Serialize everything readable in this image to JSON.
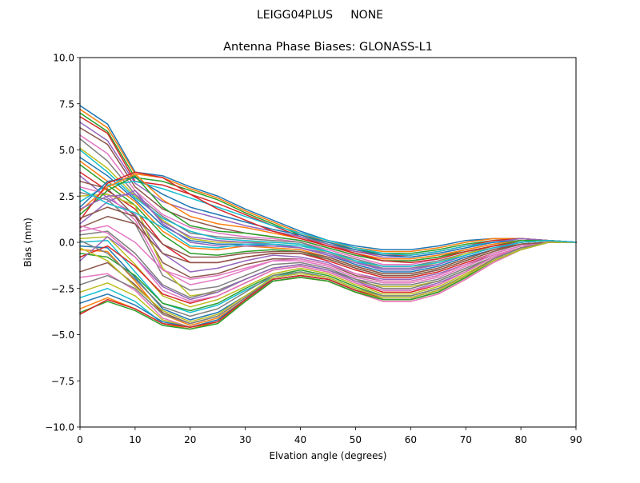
{
  "figure": {
    "suptitle": "LEIGG04PLUS     NONE"
  },
  "chart_data": {
    "type": "line",
    "title": "Antenna Phase Biases: GLONASS-L1",
    "xlabel": "Elvation angle (degrees)",
    "ylabel": "Bias (mm)",
    "xlim": [
      0,
      90
    ],
    "ylim": [
      -10,
      10
    ],
    "xticks": [
      0,
      10,
      20,
      30,
      40,
      50,
      60,
      70,
      80,
      90
    ],
    "yticks": [
      -10.0,
      -7.5,
      -5.0,
      -2.5,
      0.0,
      2.5,
      5.0,
      7.5,
      10.0
    ],
    "ytick_labels": [
      "−10.0",
      "−7.5",
      "−5.0",
      "−2.5",
      "0.0",
      "2.5",
      "5.0",
      "7.5",
      "10.0"
    ],
    "grid": false,
    "x": [
      0,
      5,
      10,
      15,
      20,
      25,
      30,
      35,
      40,
      45,
      50,
      55,
      60,
      65,
      70,
      75,
      80,
      85,
      90
    ],
    "colors": [
      "#1f77b4",
      "#ff7f0e",
      "#2ca02c",
      "#d62728",
      "#9467bd",
      "#8c564b",
      "#e377c2",
      "#7f7f7f",
      "#bcbd22",
      "#17becf"
    ],
    "series": [
      {
        "values": [
          7.4,
          6.4,
          3.8,
          3.6,
          3.0,
          2.5,
          1.8,
          1.2,
          0.6,
          0.1,
          -0.2,
          -0.4,
          -0.4,
          -0.2,
          0.1,
          0.2,
          0.2,
          0.1,
          0.0
        ]
      },
      {
        "values": [
          7.2,
          6.2,
          3.7,
          3.5,
          2.9,
          2.4,
          1.7,
          1.1,
          0.5,
          0.0,
          -0.3,
          -0.5,
          -0.5,
          -0.3,
          0.0,
          0.2,
          0.2,
          0.1,
          0.0
        ]
      },
      {
        "values": [
          7.0,
          6.0,
          3.5,
          3.3,
          2.8,
          2.3,
          1.6,
          1.0,
          0.4,
          -0.1,
          -0.4,
          -0.6,
          -0.6,
          -0.4,
          -0.1,
          0.1,
          0.2,
          0.1,
          0.0
        ]
      },
      {
        "values": [
          6.8,
          5.9,
          3.3,
          3.1,
          2.6,
          2.1,
          1.5,
          0.9,
          0.3,
          -0.2,
          -0.5,
          -0.7,
          -0.7,
          -0.5,
          -0.2,
          0.1,
          0.2,
          0.1,
          0.0
        ]
      },
      {
        "values": [
          6.5,
          5.5,
          3.2,
          2.2,
          1.7,
          1.3,
          0.9,
          0.6,
          0.3,
          -0.1,
          -0.5,
          -0.8,
          -0.8,
          -0.6,
          -0.3,
          0.0,
          0.2,
          0.1,
          0.0
        ]
      },
      {
        "values": [
          6.2,
          5.3,
          3.0,
          1.8,
          1.2,
          0.8,
          0.5,
          0.3,
          0.1,
          -0.3,
          -0.7,
          -1.0,
          -1.0,
          -0.8,
          -0.4,
          -0.1,
          0.1,
          0.1,
          0.0
        ]
      },
      {
        "values": [
          5.8,
          4.8,
          2.8,
          1.5,
          0.8,
          0.5,
          0.3,
          0.2,
          0.0,
          -0.4,
          -0.8,
          -1.2,
          -1.2,
          -0.9,
          -0.5,
          -0.2,
          0.1,
          0.1,
          0.0
        ]
      },
      {
        "values": [
          5.6,
          4.4,
          2.6,
          1.4,
          0.5,
          0.3,
          0.2,
          0.1,
          0.0,
          -0.5,
          -0.9,
          -1.3,
          -1.3,
          -1.0,
          -0.6,
          -0.2,
          0.1,
          0.1,
          0.0
        ]
      },
      {
        "values": [
          5.1,
          4.0,
          2.5,
          1.2,
          0.2,
          0.0,
          0.0,
          0.0,
          -0.1,
          -0.6,
          -1.0,
          -1.4,
          -1.4,
          -1.1,
          -0.6,
          -0.3,
          0.0,
          0.1,
          0.0
        ]
      },
      {
        "values": [
          5.0,
          3.8,
          2.4,
          1.3,
          0.6,
          0.2,
          0.1,
          0.0,
          -0.1,
          -0.5,
          -1.0,
          -1.5,
          -1.5,
          -1.2,
          -0.7,
          -0.3,
          0.0,
          0.1,
          0.0
        ]
      },
      {
        "values": [
          4.6,
          3.6,
          2.3,
          0.9,
          0.1,
          -0.1,
          -0.1,
          -0.2,
          -0.3,
          -0.7,
          -1.2,
          -1.6,
          -1.6,
          -1.3,
          -0.8,
          -0.4,
          0.0,
          0.1,
          0.0
        ]
      },
      {
        "values": [
          4.4,
          3.3,
          2.2,
          0.6,
          -0.3,
          -0.4,
          -0.2,
          -0.3,
          -0.4,
          -0.8,
          -1.3,
          -1.7,
          -1.7,
          -1.4,
          -0.9,
          -0.4,
          -0.1,
          0.0,
          0.0
        ]
      },
      {
        "values": [
          4.2,
          3.1,
          2.0,
          0.4,
          -0.6,
          -0.7,
          -0.5,
          -0.4,
          -0.5,
          -0.9,
          -1.4,
          -1.8,
          -1.8,
          -1.5,
          -1.0,
          -0.5,
          -0.1,
          0.0,
          0.0
        ]
      },
      {
        "values": [
          3.8,
          2.8,
          1.8,
          -0.1,
          -1.1,
          -1.1,
          -0.8,
          -0.6,
          -0.6,
          -1.0,
          -1.5,
          -1.9,
          -1.9,
          -1.6,
          -1.1,
          -0.6,
          -0.2,
          0.0,
          0.0
        ]
      },
      {
        "values": [
          3.6,
          2.4,
          1.5,
          -0.6,
          -1.6,
          -1.4,
          -1.0,
          -0.7,
          -0.8,
          -1.1,
          -1.7,
          -2.0,
          -2.0,
          -1.7,
          -1.2,
          -0.6,
          -0.2,
          0.0,
          0.0
        ]
      },
      {
        "values": [
          3.3,
          2.9,
          1.4,
          -1.1,
          -1.9,
          -1.7,
          -1.2,
          -0.9,
          -0.9,
          -1.2,
          -1.8,
          -2.1,
          -2.1,
          -1.8,
          -1.2,
          -0.7,
          -0.3,
          0.0,
          0.0
        ]
      },
      {
        "values": [
          3.0,
          2.6,
          1.2,
          -1.5,
          -2.3,
          -2.0,
          -1.5,
          -1.0,
          -1.0,
          -1.3,
          -1.9,
          -2.2,
          -2.2,
          -1.9,
          -1.3,
          -0.7,
          -0.3,
          0.0,
          0.0
        ]
      },
      {
        "values": [
          2.7,
          2.3,
          1.0,
          -1.8,
          -2.6,
          -2.4,
          -1.8,
          -1.2,
          -1.1,
          -1.4,
          -2.0,
          -2.3,
          -2.3,
          -2.0,
          -1.4,
          -0.8,
          -0.3,
          0.0,
          0.0
        ]
      },
      {
        "values": [
          2.5,
          2.6,
          2.0,
          -1.4,
          -2.9,
          -2.7,
          -2.0,
          -1.4,
          -1.2,
          -1.5,
          -2.1,
          -2.4,
          -2.4,
          -2.1,
          -1.5,
          -0.8,
          -0.3,
          0.0,
          0.0
        ]
      },
      {
        "values": [
          2.2,
          3.1,
          3.3,
          2.9,
          2.4,
          1.9,
          1.4,
          0.9,
          0.5,
          0.1,
          -0.3,
          -0.6,
          -0.7,
          -0.5,
          -0.2,
          0.0,
          0.1,
          0.1,
          0.0
        ]
      },
      {
        "values": [
          1.9,
          3.3,
          3.5,
          2.6,
          1.9,
          1.5,
          1.1,
          0.7,
          0.4,
          0.0,
          -0.4,
          -0.7,
          -0.8,
          -0.6,
          -0.3,
          0.0,
          0.1,
          0.1,
          0.0
        ]
      },
      {
        "values": [
          1.7,
          3.0,
          3.7,
          2.3,
          1.4,
          1.0,
          0.8,
          0.5,
          0.2,
          -0.2,
          -0.6,
          -0.9,
          -0.9,
          -0.7,
          -0.4,
          -0.1,
          0.1,
          0.1,
          0.0
        ]
      },
      {
        "values": [
          1.5,
          2.8,
          3.6,
          1.9,
          0.9,
          0.6,
          0.5,
          0.3,
          0.1,
          -0.3,
          -0.7,
          -1.0,
          -1.0,
          -0.8,
          -0.5,
          -0.2,
          0.1,
          0.1,
          0.0
        ]
      },
      {
        "values": [
          1.2,
          3.2,
          3.8,
          3.5,
          2.6,
          1.8,
          1.2,
          0.6,
          0.2,
          -0.2,
          -0.6,
          -1.0,
          -1.1,
          -0.9,
          -0.5,
          -0.2,
          0.0,
          0.1,
          0.0
        ]
      },
      {
        "values": [
          1.0,
          2.2,
          2.8,
          1.0,
          0.0,
          -0.2,
          -0.2,
          -0.2,
          -0.3,
          -0.6,
          -1.1,
          -1.5,
          -1.5,
          -1.2,
          -0.7,
          -0.3,
          0.0,
          0.1,
          0.0
        ]
      },
      {
        "values": [
          0.8,
          1.4,
          1.0,
          -0.6,
          -1.1,
          -1.1,
          -0.8,
          -0.6,
          -0.6,
          -0.9,
          -1.4,
          -1.8,
          -1.8,
          -1.5,
          -1.0,
          -0.5,
          -0.1,
          0.0,
          0.0
        ]
      },
      {
        "values": [
          0.6,
          0.9,
          0.0,
          -1.5,
          -2.0,
          -1.8,
          -1.4,
          -1.0,
          -0.9,
          -1.2,
          -1.7,
          -2.1,
          -2.1,
          -1.8,
          -1.2,
          -0.6,
          -0.2,
          0.0,
          0.0
        ]
      },
      {
        "values": [
          0.4,
          0.6,
          -0.6,
          -2.3,
          -3.0,
          -2.6,
          -2.0,
          -1.4,
          -1.2,
          -1.5,
          -2.0,
          -2.5,
          -2.5,
          -2.1,
          -1.5,
          -0.8,
          -0.3,
          0.0,
          0.0
        ]
      },
      {
        "values": [
          0.2,
          0.3,
          -1.2,
          -2.9,
          -3.5,
          -3.1,
          -2.4,
          -1.7,
          -1.4,
          -1.7,
          -2.3,
          -2.8,
          -2.8,
          -2.4,
          -1.7,
          -0.9,
          -0.3,
          0.0,
          0.0
        ]
      },
      {
        "values": [
          0.0,
          0.1,
          -1.6,
          -3.3,
          -3.8,
          -3.4,
          -2.6,
          -1.9,
          -1.6,
          -1.9,
          -2.5,
          -3.0,
          -3.0,
          -2.6,
          -1.8,
          -1.0,
          -0.4,
          0.0,
          0.0
        ]
      },
      {
        "values": [
          -0.2,
          -0.3,
          -1.9,
          -3.6,
          -4.2,
          -3.8,
          -2.9,
          -2.0,
          -1.8,
          -2.0,
          -2.6,
          -3.1,
          -3.1,
          -2.7,
          -1.9,
          -1.0,
          -0.4,
          0.0,
          0.0
        ]
      },
      {
        "values": [
          -0.4,
          -0.5,
          -2.1,
          -3.9,
          -4.5,
          -4.1,
          -3.1,
          -2.1,
          -1.9,
          -2.1,
          -2.7,
          -3.2,
          -3.2,
          -2.8,
          -2.0,
          -1.1,
          -0.4,
          0.0,
          0.0
        ]
      },
      {
        "values": [
          -0.6,
          -0.8,
          -1.8,
          -3.3,
          -3.7,
          -3.3,
          -2.5,
          -1.8,
          -1.5,
          -1.8,
          -2.4,
          -2.9,
          -2.9,
          -2.5,
          -1.8,
          -0.9,
          -0.3,
          0.0,
          0.0
        ]
      },
      {
        "values": [
          -0.8,
          -0.2,
          -1.3,
          -2.8,
          -3.3,
          -2.9,
          -2.2,
          -1.5,
          -1.3,
          -1.6,
          -2.2,
          -2.7,
          -2.7,
          -2.3,
          -1.6,
          -0.8,
          -0.3,
          0.0,
          0.0
        ]
      },
      {
        "values": [
          -1.0,
          0.3,
          -0.8,
          -2.4,
          -3.1,
          -2.7,
          -2.0,
          -1.4,
          -1.2,
          -1.5,
          -2.1,
          -2.6,
          -2.6,
          -2.2,
          -1.6,
          -0.8,
          -0.3,
          0.0,
          0.0
        ]
      },
      {
        "values": [
          -1.6,
          -1.1,
          -2.3,
          -3.8,
          -4.4,
          -4.0,
          -3.0,
          -2.0,
          -1.8,
          -2.0,
          -2.6,
          -3.1,
          -3.1,
          -2.7,
          -1.9,
          -1.0,
          -0.4,
          0.0,
          0.0
        ]
      },
      {
        "values": [
          -1.9,
          -1.7,
          -2.6,
          -4.1,
          -4.6,
          -4.2,
          -3.1,
          -2.1,
          -1.9,
          -2.1,
          -2.7,
          -3.2,
          -3.2,
          -2.8,
          -2.0,
          -1.1,
          -0.4,
          0.0,
          0.0
        ]
      },
      {
        "values": [
          -2.3,
          -1.8,
          -2.5,
          -3.9,
          -4.4,
          -4.0,
          -3.0,
          -2.0,
          -1.8,
          -2.0,
          -2.6,
          -3.1,
          -3.1,
          -2.7,
          -1.9,
          -1.0,
          -0.4,
          0.0,
          0.0
        ]
      },
      {
        "values": [
          -2.7,
          -2.2,
          -2.9,
          -4.2,
          -4.6,
          -4.2,
          -3.1,
          -2.0,
          -1.8,
          -2.0,
          -2.6,
          -3.1,
          -3.1,
          -2.7,
          -1.9,
          -1.0,
          -0.4,
          0.0,
          0.0
        ]
      },
      {
        "values": [
          -3.0,
          -2.5,
          -3.2,
          -4.4,
          -4.7,
          -4.3,
          -3.2,
          -2.1,
          -1.9,
          -2.1,
          -2.7,
          -3.1,
          -3.1,
          -2.7,
          -1.9,
          -1.0,
          -0.4,
          0.0,
          0.0
        ]
      },
      {
        "values": [
          -3.3,
          -2.8,
          -3.4,
          -4.3,
          -4.6,
          -4.2,
          -3.1,
          -2.0,
          -1.8,
          -2.0,
          -2.6,
          -3.0,
          -3.0,
          -2.6,
          -1.8,
          -1.0,
          -0.4,
          0.0,
          0.0
        ]
      },
      {
        "values": [
          -3.6,
          -3.0,
          -3.6,
          -4.4,
          -4.7,
          -4.3,
          -3.2,
          -2.1,
          -1.9,
          -2.1,
          -2.7,
          -3.1,
          -3.1,
          -2.7,
          -1.9,
          -1.0,
          -0.4,
          0.0,
          0.0
        ]
      },
      {
        "values": [
          -3.8,
          -3.2,
          -3.7,
          -4.5,
          -4.7,
          -4.4,
          -3.2,
          -2.1,
          -1.9,
          -2.1,
          -2.7,
          -3.1,
          -3.1,
          -2.7,
          -1.9,
          -1.0,
          -0.4,
          0.0,
          0.0
        ]
      },
      {
        "values": [
          -3.9,
          -3.1,
          -3.6,
          -4.4,
          -4.6,
          -4.3,
          -3.1,
          -2.0,
          -1.8,
          -2.0,
          -2.6,
          -3.0,
          -3.0,
          -2.6,
          -1.8,
          -0.9,
          -0.3,
          0.0,
          0.0
        ]
      },
      {
        "values": [
          1.8,
          2.5,
          2.6,
          1.1,
          0.3,
          0.1,
          0.0,
          -0.1,
          -0.3,
          -0.7,
          -1.1,
          -1.4,
          -1.4,
          -1.2,
          -0.7,
          -0.3,
          0.0,
          0.1,
          0.0
        ]
      },
      {
        "values": [
          1.3,
          1.9,
          1.4,
          -0.1,
          -0.8,
          -0.8,
          -0.6,
          -0.5,
          -0.5,
          -0.8,
          -1.3,
          -1.7,
          -1.7,
          -1.4,
          -0.9,
          -0.4,
          -0.1,
          0.0,
          0.0
        ]
      },
      {
        "values": [
          0.9,
          0.5,
          -0.8,
          -2.6,
          -3.2,
          -2.9,
          -2.2,
          -1.5,
          -1.3,
          -1.6,
          -2.2,
          -2.6,
          -2.6,
          -2.3,
          -1.6,
          -0.8,
          -0.3,
          0.0,
          0.0
        ]
      },
      {
        "values": [
          0.1,
          -0.6,
          -2.0,
          -3.5,
          -4.0,
          -3.6,
          -2.7,
          -1.8,
          -1.6,
          -1.9,
          -2.5,
          -2.9,
          -2.9,
          -2.5,
          -1.8,
          -0.9,
          -0.3,
          0.0,
          0.0
        ]
      },
      {
        "values": [
          -0.3,
          -1.0,
          -2.4,
          -3.7,
          -4.3,
          -3.9,
          -2.9,
          -1.9,
          -1.7,
          -1.9,
          -2.5,
          -3.0,
          -3.0,
          -2.6,
          -1.8,
          -1.0,
          -0.4,
          0.0,
          0.0
        ]
      },
      {
        "values": [
          2.9,
          2.1,
          1.6,
          0.8,
          -0.2,
          -0.3,
          -0.1,
          -0.1,
          -0.2,
          -0.5,
          -1.0,
          -1.3,
          -1.3,
          -1.1,
          -0.7,
          -0.3,
          0.0,
          0.1,
          0.0
        ]
      }
    ]
  }
}
